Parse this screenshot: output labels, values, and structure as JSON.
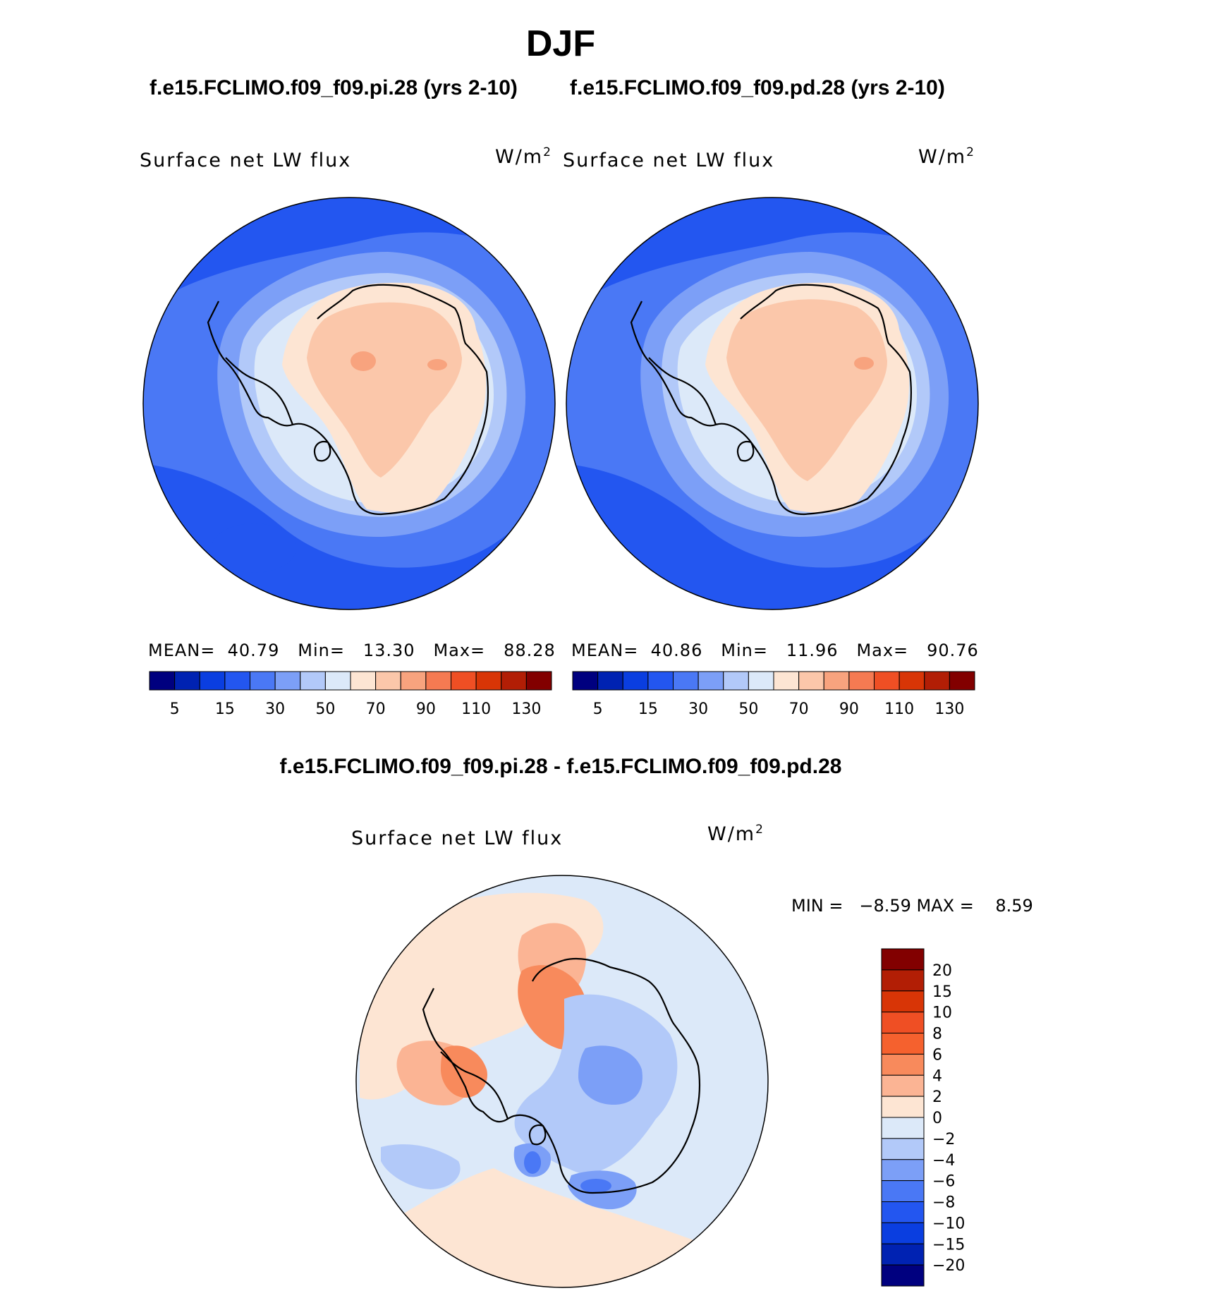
{
  "season": "DJF",
  "panel_left": {
    "case": "f.e15.FCLIMO.f09_f09.pi.28 (yrs 2-10)",
    "variable": "Surface net LW flux",
    "units_base": "W/m",
    "units_exp": "2",
    "mean_label": "MEAN=",
    "mean": "40.79",
    "min_label": "Min=",
    "min": "13.30",
    "max_label": "Max=",
    "max": "88.28"
  },
  "panel_right": {
    "case": "f.e15.FCLIMO.f09_f09.pd.28 (yrs 2-10)",
    "variable": "Surface net LW flux",
    "units_base": "W/m",
    "units_exp": "2",
    "mean_label": "MEAN=",
    "mean": "40.86",
    "min_label": "Min=",
    "min": "11.96",
    "max_label": "Max=",
    "max": "90.76"
  },
  "colorbar_abs": {
    "colors": [
      "#00007f",
      "#0022b2",
      "#0a3ee0",
      "#2356f0",
      "#4a78f5",
      "#7c9ff7",
      "#b2c9f9",
      "#dce9f9",
      "#fde5d3",
      "#fbc7aa",
      "#f8a37e",
      "#f57a52",
      "#ef4f24",
      "#d83506",
      "#b21e05",
      "#820000"
    ],
    "tick_labels": [
      "5",
      "15",
      "30",
      "50",
      "70",
      "90",
      "110",
      "130"
    ]
  },
  "panel_diff": {
    "title": "f.e15.FCLIMO.f09_f09.pi.28 - f.e15.FCLIMO.f09_f09.pd.28",
    "variable": "Surface net LW flux",
    "units_base": "W/m",
    "units_exp": "2",
    "minmax": "MIN =   −8.59 MAX =    8.59"
  },
  "colorbar_diff": {
    "colors": [
      "#00007f",
      "#0022b2",
      "#0a3ee0",
      "#2356f0",
      "#4a78f5",
      "#7c9ff7",
      "#b2c9f9",
      "#dce9f9",
      "#fde5d3",
      "#fbb494",
      "#f88a5c",
      "#f5612e",
      "#ef4f24",
      "#d83506",
      "#b21e05",
      "#820000"
    ],
    "tick_labels": [
      "20",
      "15",
      "10",
      "8",
      "6",
      "4",
      "2",
      "0",
      "−2",
      "−4",
      "−6",
      "−8",
      "−10",
      "−15",
      "−20"
    ]
  },
  "map_colors": {
    "ocean_deep": "#2356f0",
    "ocean_mid": "#4a78f5",
    "ocean_light": "#7c9ff7",
    "ring1": "#b2c9f9",
    "ring2": "#dce9f9",
    "land_light": "#fde5d3",
    "land_mid": "#fbc7aa",
    "land_hot": "#f8a37e",
    "diff_neutral": "#dce9f9",
    "diff_pos1": "#fde5d3",
    "diff_pos2": "#fbb494",
    "diff_pos3": "#f88a5c",
    "diff_neg1": "#b2c9f9",
    "diff_neg2": "#7c9ff7",
    "diff_neg3": "#4a78f5"
  }
}
